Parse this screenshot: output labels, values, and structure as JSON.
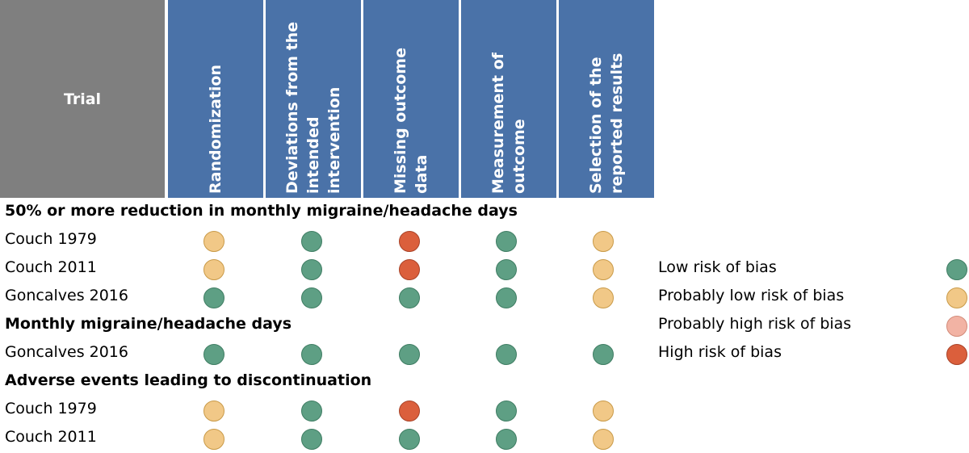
{
  "colors": {
    "header_bg": "#4a72a8",
    "trial_header_bg": "#7f7f7f",
    "low": "#5e9f84",
    "prob_low": "#f1c887",
    "prob_high": "#f2b3a4",
    "high": "#db5f3c"
  },
  "header": {
    "trial": "Trial",
    "columns": [
      {
        "lines": [
          "Randomization"
        ]
      },
      {
        "lines": [
          "Deviations from the",
          "intended",
          "intervention"
        ]
      },
      {
        "lines": [
          "Missing outcome",
          "data"
        ]
      },
      {
        "lines": [
          "Measurement of",
          "outcome"
        ]
      },
      {
        "lines": [
          "Selection of the",
          "reported results"
        ]
      }
    ]
  },
  "sections": [
    {
      "title": "50% or more reduction in monthly migraine/headache days",
      "rows": [
        {
          "trial": "Couch 1979",
          "ratings": [
            "prob_low",
            "low",
            "high",
            "low",
            "prob_low"
          ]
        },
        {
          "trial": "Couch 2011",
          "ratings": [
            "prob_low",
            "low",
            "high",
            "low",
            "prob_low"
          ]
        },
        {
          "trial": "Goncalves 2016",
          "ratings": [
            "low",
            "low",
            "low",
            "low",
            "prob_low"
          ]
        }
      ]
    },
    {
      "title": "Monthly migraine/headache days",
      "rows": [
        {
          "trial": "Goncalves 2016",
          "ratings": [
            "low",
            "low",
            "low",
            "low",
            "low"
          ]
        }
      ]
    },
    {
      "title": "Adverse events leading to discontinuation",
      "rows": [
        {
          "trial": "Couch 1979",
          "ratings": [
            "prob_low",
            "low",
            "high",
            "low",
            "prob_low"
          ]
        },
        {
          "trial": "Couch 2011",
          "ratings": [
            "prob_low",
            "low",
            "low",
            "low",
            "prob_low"
          ]
        }
      ]
    }
  ],
  "legend": [
    {
      "label": "Low risk of bias",
      "key": "low"
    },
    {
      "label": "Probably low risk of bias",
      "key": "prob_low"
    },
    {
      "label": "Probably high risk of bias",
      "key": "prob_high"
    },
    {
      "label": "High risk of bias",
      "key": "high"
    }
  ]
}
